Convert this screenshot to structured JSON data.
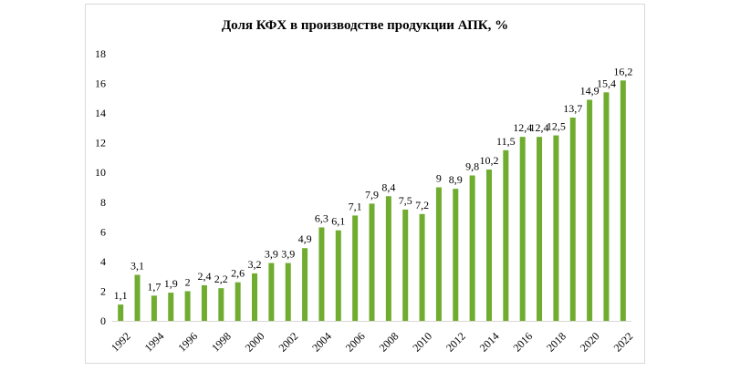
{
  "chart_data": {
    "type": "bar",
    "title": "Доля КФХ в производстве продукции АПК, %",
    "xlabel": "",
    "ylabel": "",
    "ylim": [
      0,
      18
    ],
    "y_ticks": [
      0,
      2,
      4,
      6,
      8,
      10,
      12,
      14,
      16,
      18
    ],
    "grid": false,
    "legend": "none",
    "bar_color": "#6fac2f",
    "categories": [
      "1992",
      "1993",
      "1994",
      "1995",
      "1996",
      "1997",
      "1998",
      "1999",
      "2000",
      "2001",
      "2002",
      "2003",
      "2004",
      "2005",
      "2006",
      "2007",
      "2008",
      "2009",
      "2010",
      "2011",
      "2012",
      "2013",
      "2014",
      "2015",
      "2016",
      "2017",
      "2018",
      "2019",
      "2020",
      "2021",
      "2022"
    ],
    "x_tick_labels": [
      "1992",
      "",
      "1994",
      "",
      "1996",
      "",
      "1998",
      "",
      "2000",
      "",
      "2002",
      "",
      "2004",
      "",
      "2006",
      "",
      "2008",
      "",
      "2010",
      "",
      "2012",
      "",
      "2014",
      "",
      "2016",
      "",
      "2018",
      "",
      "2020",
      "",
      "2022"
    ],
    "values": [
      1.1,
      3.1,
      1.7,
      1.9,
      2.0,
      2.4,
      2.2,
      2.6,
      3.2,
      3.9,
      3.9,
      4.9,
      6.3,
      6.1,
      7.1,
      7.9,
      8.4,
      7.5,
      7.2,
      9.0,
      8.9,
      9.8,
      10.2,
      11.5,
      12.4,
      12.4,
      12.5,
      13.7,
      14.9,
      15.4,
      16.2
    ],
    "data_labels": [
      "1,1",
      "3,1",
      "1,7",
      "1,9",
      "2",
      "2,4",
      "2,2",
      "2,6",
      "3,2",
      "3,9",
      "3,9",
      "4,9",
      "6,3",
      "6,1",
      "7,1",
      "7,9",
      "8,4",
      "7,5",
      "7,2",
      "9",
      "8,9",
      "9,8",
      "10,2",
      "11,5",
      "12,4",
      "12,4",
      "12,5",
      "13,7",
      "14,9",
      "15,4",
      "16,2"
    ]
  }
}
